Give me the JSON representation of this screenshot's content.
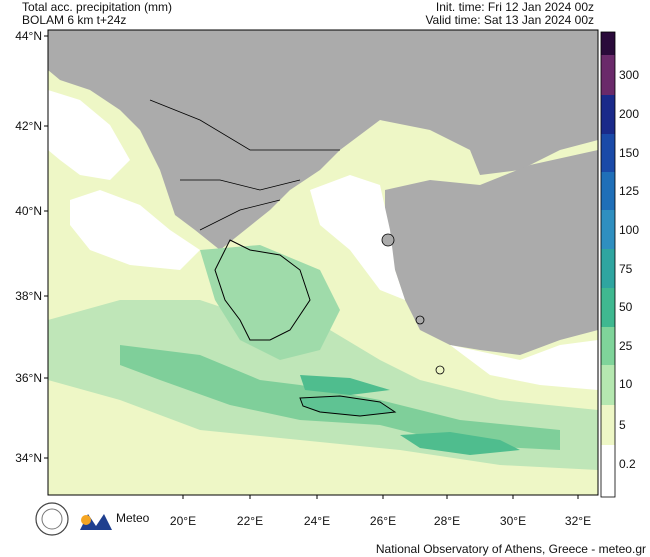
{
  "header": {
    "title": "Total acc. precipitation (mm)",
    "subtitle": "BOLAM 6 km t+24z",
    "init_time": "Init. time: Fri 12 Jan 2024 00z",
    "valid_time": "Valid time: Sat 13 Jan 2024 00z"
  },
  "lat_labels": [
    "44°N",
    "42°N",
    "40°N",
    "38°N",
    "36°N",
    "34°N"
  ],
  "lon_labels": [
    "20°E",
    "22°E",
    "24°E",
    "26°E",
    "28°E",
    "30°E",
    "32°E"
  ],
  "legend_levels": [
    "300",
    "200",
    "150",
    "125",
    "100",
    "75",
    "50",
    "25",
    "10",
    "5",
    "0.2"
  ],
  "logo": {
    "name": "Meteo"
  },
  "footer": "National Observatory of Athens, Greece - meteo.gr"
}
